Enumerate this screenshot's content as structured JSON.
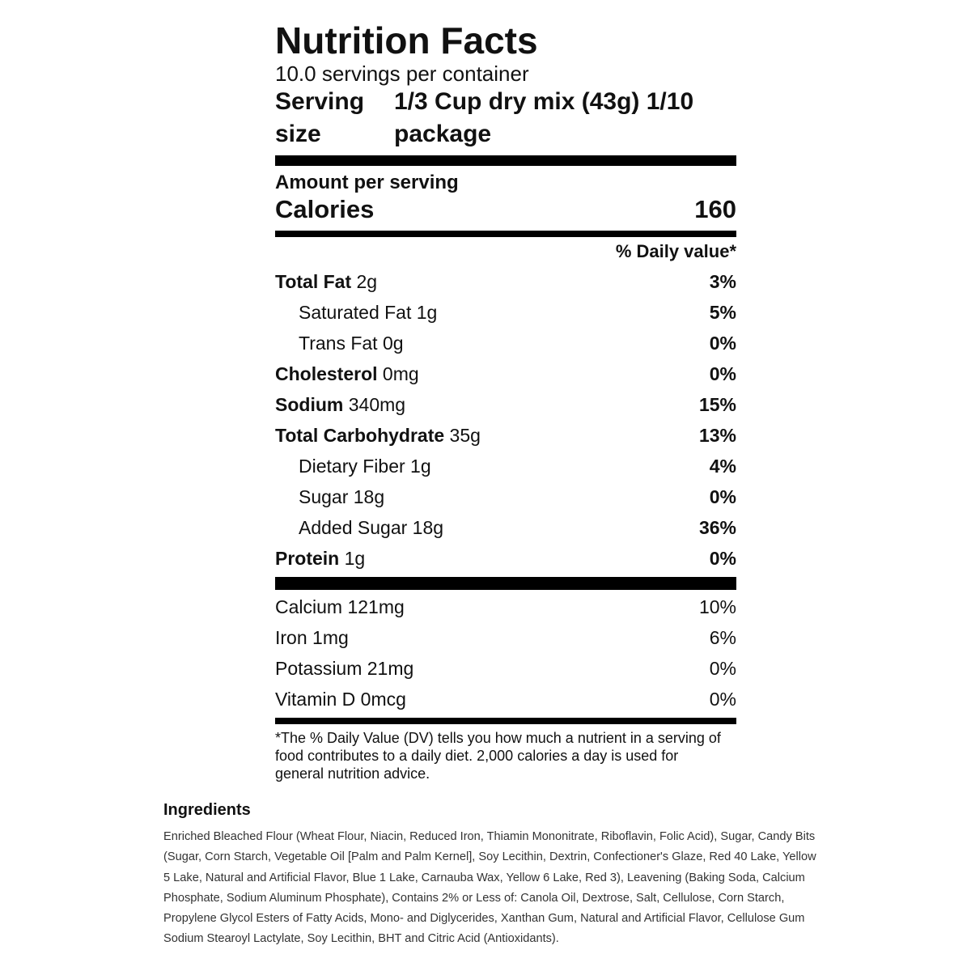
{
  "label": {
    "title": "Nutrition Facts",
    "servings": "10.0 servings per container",
    "serving_size_label": "Serving size",
    "serving_size_value": "1/3 Cup dry mix (43g) 1/10 package",
    "amount_per_serving": "Amount per serving",
    "calories_label": "Calories",
    "calories": "160",
    "daily_value_header": "% Daily value*",
    "nutrients": [
      {
        "name": "Total Fat",
        "amount": "2g",
        "dv": "3%",
        "sub": [
          {
            "name": "Saturated Fat",
            "amount": "1g",
            "dv": "5%"
          },
          {
            "name": "Trans Fat",
            "amount": "0g",
            "dv": "0%"
          }
        ]
      },
      {
        "name": "Cholesterol",
        "amount": "0mg",
        "dv": "0%"
      },
      {
        "name": "Sodium",
        "amount": "340mg",
        "dv": "15%"
      },
      {
        "name": "Total Carbohydrate",
        "amount": "35g",
        "dv": "13%",
        "sub": [
          {
            "name": "Dietary Fiber",
            "amount": "1g",
            "dv": "4%"
          },
          {
            "name": "Sugar",
            "amount": "18g",
            "dv": "0%"
          },
          {
            "name": "Added Sugar",
            "amount": "18g",
            "dv": "36%"
          }
        ]
      },
      {
        "name": "Protein",
        "amount": "1g",
        "dv": "0%"
      }
    ],
    "vitamins": [
      {
        "name": "Calcium",
        "amount": "121mg",
        "dv": "10%"
      },
      {
        "name": "Iron",
        "amount": "1mg",
        "dv": "6%"
      },
      {
        "name": "Potassium",
        "amount": "21mg",
        "dv": "0%"
      },
      {
        "name": "Vitamin D",
        "amount": "0mcg",
        "dv": "0%"
      }
    ],
    "footnote": "*The % Daily Value (DV) tells you how much a nutrient in a serving of food contributes to a daily diet. 2,000 calories a day is used for general nutrition advice."
  },
  "ingredients": {
    "title": "Ingredients",
    "text": "Enriched Bleached Flour (Wheat Flour, Niacin, Reduced Iron, Thiamin Mononitrate, Riboflavin, Folic Acid), Sugar, Candy Bits (Sugar, Corn Starch, Vegetable Oil [Palm and Palm Kernel], Soy Lecithin, Dextrin, Confectioner's Glaze, Red 40 Lake, Yellow 5 Lake, Natural and Artificial Flavor, Blue 1 Lake, Carnauba Wax, Yellow 6 Lake, Red 3), Leavening (Baking Soda, Calcium Phosphate, Sodium Aluminum Phosphate), Contains 2% or Less of: Canola Oil, Dextrose, Salt, Cellulose, Corn Starch, Propylene Glycol Esters of Fatty Acids, Mono- and Diglycerides, Xanthan Gum, Natural and Artificial Flavor, Cellulose Gum Sodium Stearoyl Lactylate, Soy Lecithin, BHT and Citric Acid (Antioxidants)."
  }
}
